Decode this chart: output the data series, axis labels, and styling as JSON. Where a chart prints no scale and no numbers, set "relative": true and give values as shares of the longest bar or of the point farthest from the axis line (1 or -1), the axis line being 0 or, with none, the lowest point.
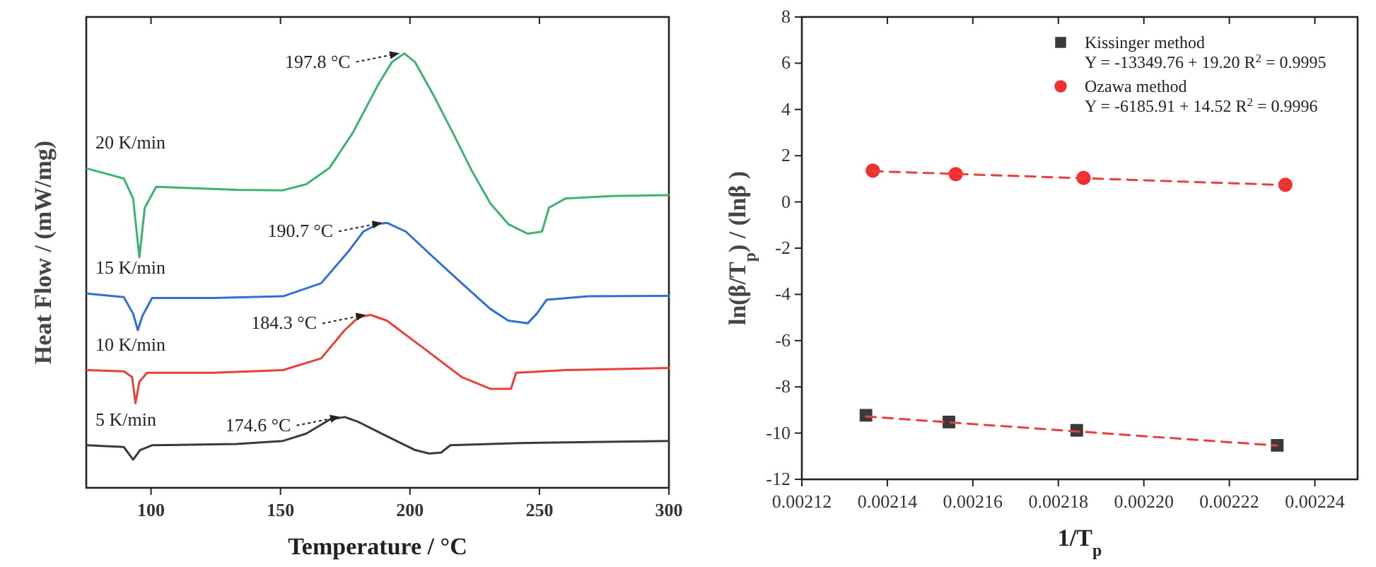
{
  "chart_data": [
    {
      "type": "line",
      "relative": true,
      "xlabel": "Temperature / °C",
      "ylabel": "Heat Flow / (mW/mg)",
      "xlim": [
        75,
        300
      ],
      "xticks": [
        100,
        150,
        200,
        250,
        300
      ],
      "legend": false,
      "grid": false,
      "series": [
        {
          "name": "20 K/min",
          "color": "#3cb371",
          "x": [
            75.3,
            89.5,
            93.1,
            95.5,
            97.6,
            102,
            115,
            133,
            151,
            160,
            169,
            178,
            187.5,
            193,
            197.8,
            202,
            209,
            216.5,
            223.8,
            231,
            238,
            245.5,
            251,
            253.7,
            260,
            278,
            300
          ],
          "values": [
            0.735,
            0.712,
            0.666,
            0.531,
            0.645,
            0.693,
            0.69,
            0.686,
            0.685,
            0.699,
            0.737,
            0.818,
            0.926,
            0.98,
            1.0,
            0.98,
            0.905,
            0.818,
            0.731,
            0.655,
            0.607,
            0.585,
            0.59,
            0.645,
            0.666,
            0.672,
            0.674
          ]
        },
        {
          "name": "15 K/min",
          "color": "#2f6fd6",
          "x": [
            75.3,
            89.5,
            93.1,
            94.9,
            96.7,
            100.4,
            124,
            151,
            165.7,
            176.6,
            182,
            187.5,
            191.1,
            198.4,
            209,
            220,
            231,
            238,
            245.5,
            249,
            252.8,
            269,
            300
          ],
          "values": [
            0.447,
            0.439,
            0.401,
            0.363,
            0.396,
            0.437,
            0.437,
            0.441,
            0.471,
            0.547,
            0.59,
            0.607,
            0.61,
            0.59,
            0.531,
            0.471,
            0.412,
            0.385,
            0.379,
            0.401,
            0.433,
            0.441,
            0.442
          ]
        },
        {
          "name": "10 K/min",
          "color": "#e8403a",
          "x": [
            75.3,
            89.5,
            92.7,
            94,
            95.5,
            98.5,
            124,
            151,
            165.7,
            174.8,
            180.2,
            184.8,
            191.1,
            205.6,
            220,
            231,
            239,
            241,
            260,
            300
          ],
          "values": [
            0.271,
            0.268,
            0.255,
            0.195,
            0.244,
            0.265,
            0.265,
            0.271,
            0.298,
            0.363,
            0.393,
            0.398,
            0.385,
            0.32,
            0.255,
            0.228,
            0.228,
            0.265,
            0.271,
            0.276
          ]
        },
        {
          "name": "5 K/min",
          "color": "#3a3a3a",
          "x": [
            75.3,
            89.5,
            93.1,
            95.8,
            100.4,
            133,
            151,
            160,
            169,
            174.8,
            180,
            191,
            202,
            207.4,
            212,
            215.6,
            242,
            300
          ],
          "values": [
            0.098,
            0.094,
            0.065,
            0.087,
            0.098,
            0.101,
            0.108,
            0.125,
            0.157,
            0.163,
            0.152,
            0.119,
            0.087,
            0.079,
            0.081,
            0.098,
            0.103,
            0.108
          ]
        }
      ],
      "annotations": [
        "197.8 °C",
        "190.7 °C",
        "184.3 °C",
        "174.6 °C"
      ]
    },
    {
      "type": "scatter",
      "xlabel": "1/T$_{p}$",
      "ylabel": "ln(β/T$_{p}$) / (lnβ )",
      "xlim": [
        0.00212,
        0.00225
      ],
      "ylim": [
        -12,
        8
      ],
      "xticks": [
        {
          "value": 0.00212,
          "label": "0.00212"
        },
        {
          "value": 0.00214,
          "label": "0.00214"
        },
        {
          "value": 0.00216,
          "label": "0.00216"
        },
        {
          "value": 0.00218,
          "label": "0.00218"
        },
        {
          "value": 0.0022,
          "label": "0.00220"
        },
        {
          "value": 0.00222,
          "label": "0.00222"
        },
        {
          "value": 0.00224,
          "label": "0.00224"
        }
      ],
      "yticks": [
        -12,
        -10,
        -8,
        -6,
        -4,
        -2,
        0,
        2,
        4,
        6,
        8
      ],
      "legend": "top right",
      "grid": false,
      "series": [
        {
          "name": "Kissinger method",
          "color": "#3a3a3a",
          "marker": "square",
          "x": [
            0.002135,
            0.0021544,
            0.0021843,
            0.0022312
          ],
          "values": [
            -9.23,
            -9.52,
            -9.88,
            -10.53
          ]
        },
        {
          "name": "Ozawa method",
          "color": "#f03030",
          "marker": "circle",
          "x": [
            0.0021366,
            0.002156,
            0.0021859,
            0.0022331
          ],
          "values": [
            1.35,
            1.2,
            1.04,
            0.74
          ]
        },
        {
          "type": "line",
          "color": "#e8413c",
          "line_style": "dashed",
          "marker": "none",
          "x": [
            0.002135,
            0.0022312
          ],
          "values": [
            -9.28,
            -10.54
          ]
        },
        {
          "type": "line",
          "color": "#e8413c",
          "line_style": "dashed",
          "marker": "none",
          "x": [
            0.0021366,
            0.0022331
          ],
          "values": [
            1.33,
            0.73
          ]
        }
      ],
      "annotations": [
        "Y = -13349.76 + 19.20    R$^{2}$ = 0.9995",
        "Y = -6185.91 + 14.52    R$^{2}$ = 0.9996"
      ]
    }
  ]
}
